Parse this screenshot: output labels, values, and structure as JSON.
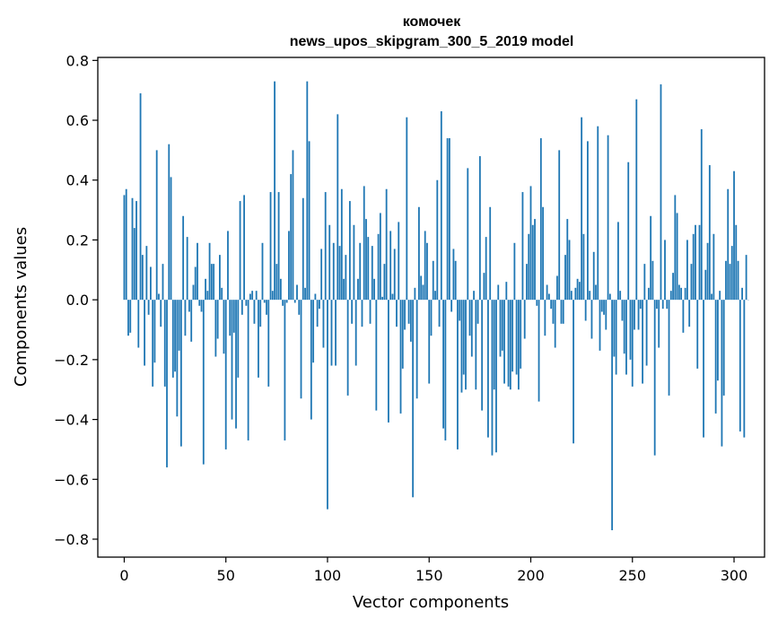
{
  "chart_data": {
    "type": "bar",
    "title": "комочек",
    "subtitle": "news_upos_skipgram_300_5_2019 model",
    "xlabel": "Vector components",
    "ylabel": "Components values",
    "xlim": [
      -13,
      315
    ],
    "ylim": [
      -0.86,
      0.81
    ],
    "xticks": [
      0,
      50,
      100,
      150,
      200,
      250,
      300
    ],
    "xtick_labels": [
      "0",
      "50",
      "100",
      "150",
      "200",
      "250",
      "300"
    ],
    "yticks": [
      -0.8,
      -0.6,
      -0.4,
      -0.2,
      0.0,
      0.2,
      0.4,
      0.6,
      0.8
    ],
    "ytick_labels": [
      "−0.8",
      "−0.6",
      "−0.4",
      "−0.2",
      "0.0",
      "0.2",
      "0.4",
      "0.6",
      "0.8"
    ],
    "grid": false,
    "legend": false,
    "bar_color": "#1f77b4",
    "series": [
      {
        "x_start": 0,
        "values": [
          0.35,
          0.37,
          -0.12,
          -0.11,
          0.34,
          0.24,
          0.33,
          -0.16,
          0.69,
          0.15,
          -0.22,
          0.18,
          -0.05,
          0.11,
          -0.29,
          -0.21,
          0.5,
          0.02,
          -0.09,
          0.12,
          -0.29,
          -0.56,
          0.52,
          0.41,
          -0.26,
          -0.24,
          -0.39,
          -0.17,
          -0.49,
          0.28,
          -0.12,
          0.21,
          -0.04,
          -0.14,
          0.05,
          0.11,
          0.19,
          -0.02,
          -0.04,
          -0.55,
          0.07,
          0.03,
          0.19,
          0.12,
          0.12,
          -0.19,
          -0.13,
          0.15,
          0.04,
          -0.18,
          -0.5,
          0.23,
          -0.12,
          -0.4,
          -0.11,
          -0.43,
          -0.26,
          0.33,
          -0.05,
          0.35,
          -0.02,
          -0.47,
          0.02,
          0.03,
          -0.08,
          0.03,
          -0.26,
          -0.09,
          0.19,
          -0.01,
          -0.05,
          -0.29,
          0.36,
          0.03,
          0.73,
          0.12,
          0.36,
          0.07,
          -0.02,
          -0.47,
          -0.01,
          0.23,
          0.42,
          0.5,
          -0.01,
          0.05,
          -0.05,
          -0.33,
          0.34,
          0.04,
          0.73,
          0.53,
          -0.4,
          -0.21,
          0.02,
          -0.09,
          -0.03,
          0.17,
          -0.16,
          0.36,
          -0.7,
          0.25,
          -0.22,
          0.19,
          -0.22,
          0.62,
          0.18,
          0.37,
          0.07,
          0.15,
          -0.32,
          0.33,
          -0.08,
          0.25,
          -0.22,
          0.07,
          0.19,
          -0.09,
          0.38,
          0.27,
          0.21,
          -0.08,
          0.18,
          0.07,
          -0.37,
          0.22,
          0.29,
          0.01,
          0.12,
          0.37,
          -0.41,
          0.23,
          0.02,
          0.17,
          -0.09,
          0.26,
          -0.38,
          -0.23,
          -0.1,
          0.61,
          -0.08,
          -0.14,
          -0.66,
          0.04,
          -0.33,
          0.31,
          0.08,
          0.05,
          0.23,
          0.19,
          -0.28,
          -0.12,
          0.13,
          0.03,
          0.4,
          -0.09,
          0.63,
          -0.43,
          -0.47,
          0.54,
          0.54,
          -0.04,
          0.17,
          0.13,
          -0.5,
          -0.07,
          -0.31,
          -0.25,
          -0.3,
          0.44,
          -0.12,
          -0.19,
          0.03,
          -0.3,
          -0.08,
          0.48,
          -0.37,
          0.09,
          0.21,
          -0.46,
          0.31,
          -0.52,
          -0.3,
          -0.51,
          0.05,
          -0.19,
          -0.17,
          -0.28,
          0.06,
          -0.29,
          -0.3,
          -0.24,
          0.19,
          -0.25,
          -0.3,
          -0.23,
          0.36,
          -0.13,
          0.12,
          0.22,
          0.38,
          0.25,
          0.27,
          -0.02,
          -0.34,
          0.54,
          0.31,
          -0.12,
          0.05,
          0.02,
          -0.03,
          -0.08,
          -0.16,
          0.08,
          0.5,
          -0.08,
          -0.08,
          0.15,
          0.27,
          0.2,
          0.03,
          -0.48,
          0.04,
          0.07,
          0.06,
          0.61,
          0.22,
          -0.07,
          0.53,
          0.03,
          -0.13,
          0.16,
          0.05,
          0.58,
          -0.17,
          -0.04,
          -0.05,
          -0.1,
          0.55,
          0.02,
          -0.77,
          -0.19,
          -0.25,
          0.26,
          0.03,
          -0.07,
          -0.18,
          -0.25,
          0.46,
          -0.2,
          -0.29,
          -0.1,
          0.67,
          -0.1,
          -0.03,
          -0.28,
          0.12,
          -0.22,
          0.04,
          0.28,
          0.13,
          -0.52,
          -0.03,
          -0.16,
          0.72,
          -0.03,
          0.2,
          -0.03,
          -0.32,
          0.03,
          0.09,
          0.35,
          0.29,
          0.05,
          0.04,
          -0.11,
          0.04,
          0.2,
          -0.09,
          0.12,
          0.22,
          0.25,
          -0.23,
          0.25,
          0.57,
          -0.46,
          0.1,
          0.19,
          0.45,
          0.02,
          0.22,
          -0.38,
          -0.27,
          0.03,
          -0.49,
          -0.32,
          0.13,
          0.37,
          0.12,
          0.18,
          0.43,
          0.25,
          0.13,
          -0.44,
          0.04,
          -0.46,
          0.15,
          0.0
        ]
      }
    ]
  }
}
